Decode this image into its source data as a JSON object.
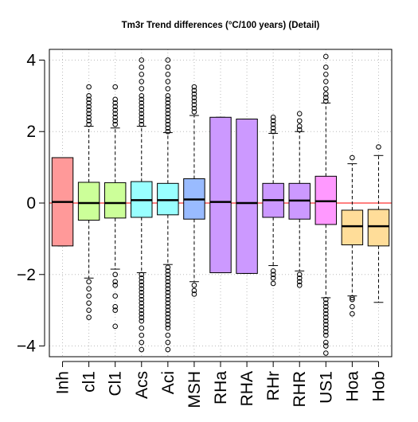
{
  "chart_data": {
    "type": "box",
    "title": "Tm3r Trend differences (°C/100 years) (Detail)",
    "xlabel": "",
    "ylabel": "",
    "ylim": [
      -4.3,
      4.3
    ],
    "yticks": [
      -4,
      -2,
      0,
      2,
      4
    ],
    "reference_line": {
      "y": 0,
      "color": "#ff0000"
    },
    "grid": true,
    "categories": [
      "Inh",
      "cl1",
      "Cl1",
      "Acs",
      "Aci",
      "MSH",
      "RHa",
      "RHA",
      "RHr",
      "RHR",
      "US1",
      "Hoa",
      "Hob"
    ],
    "boxes": [
      {
        "label": "Inh",
        "color": "#ff9999",
        "q1": -1.2,
        "median": 0.03,
        "q3": 1.27,
        "whisker_low": -1.2,
        "whisker_high": 1.27,
        "outliers": []
      },
      {
        "label": "cl1",
        "color": "#ccff99",
        "q1": -0.48,
        "median": 0.0,
        "q3": 0.58,
        "whisker_low": -2.1,
        "whisker_high": 2.15,
        "outliers": [
          2.2,
          2.3,
          2.4,
          2.5,
          2.6,
          2.7,
          2.8,
          2.9,
          3.0,
          3.25,
          -2.2,
          -2.4,
          -2.6,
          -2.8,
          -3.0,
          -3.2
        ]
      },
      {
        "label": "Cl1",
        "color": "#ccff99",
        "q1": -0.42,
        "median": 0.0,
        "q3": 0.57,
        "whisker_low": -1.85,
        "whisker_high": 2.1,
        "outliers": [
          2.2,
          2.3,
          2.4,
          2.5,
          2.6,
          2.7,
          2.8,
          2.9,
          3.25,
          -2.0,
          -2.2,
          -2.3,
          -2.6,
          -2.9,
          -3.0,
          -3.45
        ]
      },
      {
        "label": "Acs",
        "color": "#99ffff",
        "q1": -0.4,
        "median": 0.08,
        "q3": 0.6,
        "whisker_low": -1.95,
        "whisker_high": 2.15,
        "outliers": [
          2.2,
          2.3,
          2.4,
          2.5,
          2.6,
          2.7,
          2.8,
          2.9,
          3.0,
          3.2,
          3.4,
          3.6,
          3.8,
          4.0,
          -2.0,
          -2.1,
          -2.2,
          -2.3,
          -2.4,
          -2.5,
          -2.6,
          -2.7,
          -2.8,
          -2.9,
          -3.0,
          -3.1,
          -3.2,
          -3.3,
          -3.5,
          -3.7,
          -3.9,
          -4.1
        ]
      },
      {
        "label": "Aci",
        "color": "#99ffff",
        "q1": -0.33,
        "median": 0.08,
        "q3": 0.55,
        "whisker_low": -1.72,
        "whisker_high": 1.97,
        "outliers": [
          2.0,
          2.1,
          2.2,
          2.3,
          2.4,
          2.5,
          2.6,
          2.7,
          2.8,
          2.9,
          3.0,
          3.2,
          3.4,
          3.6,
          3.8,
          4.0,
          -1.8,
          -1.9,
          -2.0,
          -2.1,
          -2.2,
          -2.3,
          -2.4,
          -2.5,
          -2.6,
          -2.7,
          -2.8,
          -2.9,
          -3.0,
          -3.1,
          -3.2,
          -3.3,
          -3.4,
          -3.5,
          -3.7,
          -3.9,
          -4.1
        ]
      },
      {
        "label": "MSH",
        "color": "#99bbff",
        "q1": -0.45,
        "median": 0.1,
        "q3": 0.68,
        "whisker_low": -2.2,
        "whisker_high": 2.45,
        "outliers": [
          2.55,
          2.65,
          2.75,
          2.85,
          2.95,
          3.05,
          3.15,
          3.25,
          -2.3,
          -2.45,
          -2.55
        ]
      },
      {
        "label": "RHa",
        "color": "#cc99ff",
        "q1": -1.95,
        "median": 0.03,
        "q3": 2.4,
        "whisker_low": -1.95,
        "whisker_high": 2.4,
        "outliers": []
      },
      {
        "label": "RHA",
        "color": "#cc99ff",
        "q1": -1.97,
        "median": 0.0,
        "q3": 2.35,
        "whisker_low": -1.97,
        "whisker_high": 2.35,
        "outliers": []
      },
      {
        "label": "RHr",
        "color": "#cc99ff",
        "q1": -0.4,
        "median": 0.08,
        "q3": 0.55,
        "whisker_low": -1.75,
        "whisker_high": 1.95,
        "outliers": [
          2.0,
          2.1,
          2.2,
          2.3,
          2.4,
          -1.9,
          -2.0,
          -2.1,
          -2.25
        ]
      },
      {
        "label": "RHR",
        "color": "#cc99ff",
        "q1": -0.45,
        "median": 0.07,
        "q3": 0.55,
        "whisker_low": -1.9,
        "whisker_high": 2.0,
        "outliers": [
          2.05,
          2.15,
          2.3,
          2.5,
          -2.0,
          -2.1,
          -2.2,
          -2.3
        ]
      },
      {
        "label": "US1",
        "color": "#ff99ff",
        "q1": -0.6,
        "median": 0.05,
        "q3": 0.75,
        "whisker_low": -2.65,
        "whisker_high": 2.8,
        "outliers": [
          2.85,
          2.95,
          3.05,
          3.2,
          3.4,
          3.6,
          3.8,
          4.1,
          -2.7,
          -2.8,
          -2.9,
          -3.0,
          -3.1,
          -3.2,
          -3.3,
          -3.4,
          -3.5,
          -3.6,
          -3.7,
          -3.9,
          -4.0,
          -4.2
        ]
      },
      {
        "label": "Hoa",
        "color": "#ffdd99",
        "q1": -1.17,
        "median": -0.65,
        "q3": -0.2,
        "whisker_low": -2.6,
        "whisker_high": 1.1,
        "outliers": [
          1.27,
          -2.65,
          -2.7,
          -2.9,
          -3.1
        ]
      },
      {
        "label": "Hob",
        "color": "#ffdd99",
        "q1": -1.2,
        "median": -0.65,
        "q3": -0.18,
        "whisker_low": -2.78,
        "whisker_high": 1.33,
        "outliers": [
          1.57
        ]
      }
    ]
  }
}
